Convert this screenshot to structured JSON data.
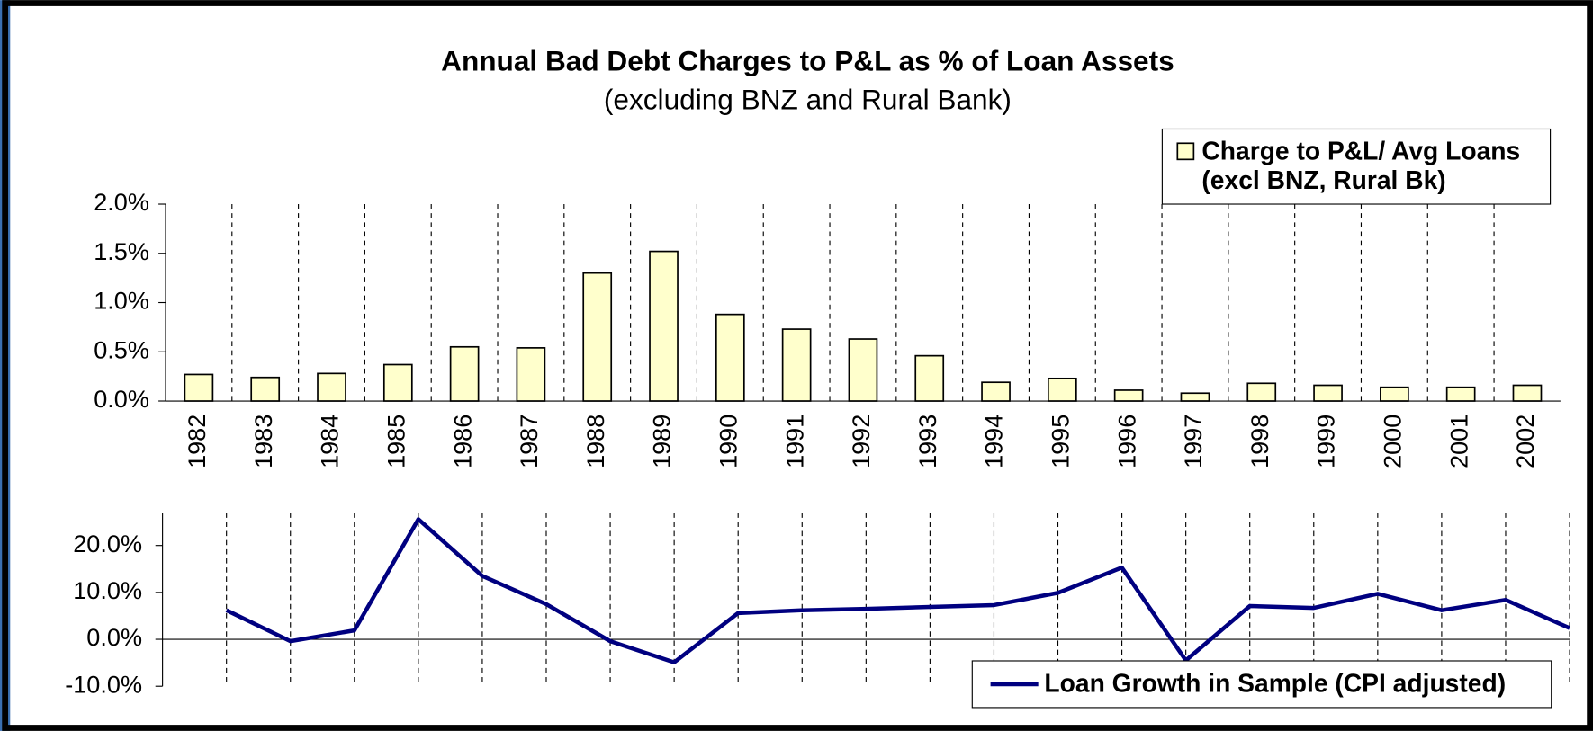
{
  "chart_data": [
    {
      "type": "bar",
      "title": "Annual Bad Debt Charges to P&L as % of Loan Assets",
      "subtitle": "(excluding BNZ and Rural Bank)",
      "categories": [
        "1982",
        "1983",
        "1984",
        "1985",
        "1986",
        "1987",
        "1988",
        "1989",
        "1990",
        "1991",
        "1992",
        "1993",
        "1994",
        "1995",
        "1996",
        "1997",
        "1998",
        "1999",
        "2000",
        "2001",
        "2002"
      ],
      "series": [
        {
          "name": "Charge to P&L/ Avg Loans (excl BNZ, Rural Bk)",
          "color": "#ffffcc",
          "values": [
            0.27,
            0.24,
            0.28,
            0.37,
            0.55,
            0.54,
            1.3,
            1.52,
            0.88,
            0.73,
            0.63,
            0.46,
            0.19,
            0.23,
            0.11,
            0.08,
            0.18,
            0.16,
            0.14,
            0.14,
            0.16
          ]
        }
      ],
      "ylim": [
        0,
        2
      ],
      "yticks": [
        {
          "value": 0,
          "label": "0.0%"
        },
        {
          "value": 0.5,
          "label": "0.5%"
        },
        {
          "value": 1,
          "label": "1.0%"
        },
        {
          "value": 1.5,
          "label": "1.5%"
        },
        {
          "value": 2,
          "label": "2.0%"
        }
      ],
      "legend": "upper right"
    },
    {
      "type": "line",
      "categories": [
        null,
        null,
        null,
        null,
        null,
        null,
        null,
        null,
        null,
        null,
        null,
        null,
        null,
        null,
        null,
        null,
        null,
        null,
        null,
        null,
        null,
        null
      ],
      "series": [
        {
          "name": "Loan Growth in Sample (CPI adjusted)",
          "color": "#000080",
          "values": [
            6.2,
            -0.4,
            1.9,
            25.6,
            13.5,
            7.5,
            -0.4,
            -4.9,
            5.6,
            6.2,
            6.5,
            6.9,
            7.3,
            9.9,
            15.3,
            -4.5,
            7.1,
            6.7,
            9.7,
            6.2,
            8.4,
            2.4
          ]
        }
      ],
      "ylim": [
        -10,
        27
      ],
      "yticks": [
        {
          "value": -10,
          "label": "-10.0%"
        },
        {
          "value": 0,
          "label": "0.0%"
        },
        {
          "value": 10,
          "label": "10.0%"
        },
        {
          "value": 20,
          "label": "20.0%"
        }
      ],
      "legend": "lower right"
    }
  ]
}
